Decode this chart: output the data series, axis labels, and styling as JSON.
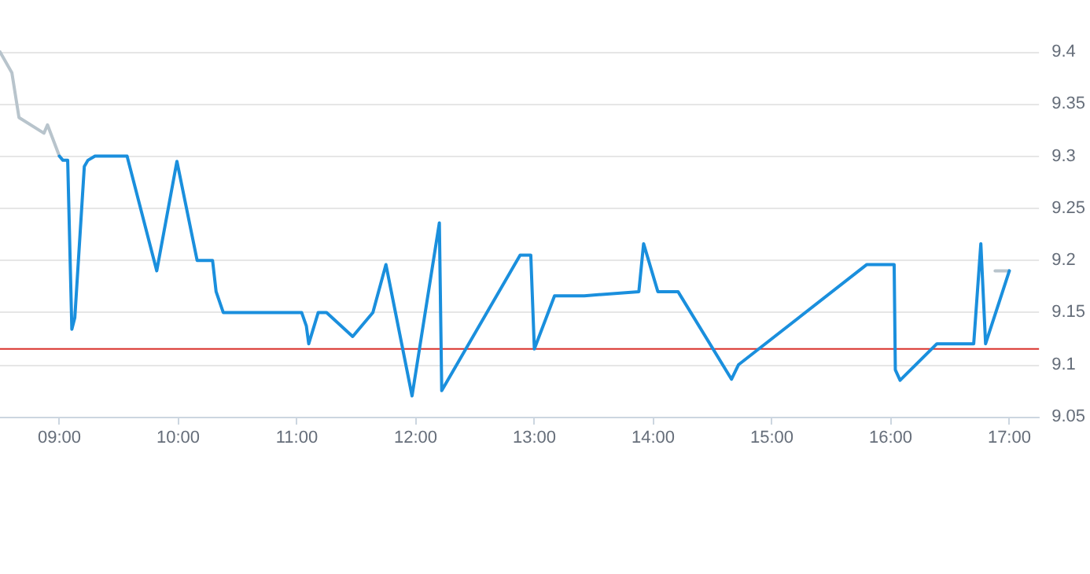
{
  "chart_data": {
    "type": "line",
    "marker": "none",
    "line_style": "solid",
    "grid": "y",
    "xlim": [
      8.5,
      17.25
    ],
    "xticks": [
      {
        "value": 9,
        "label": "09:00"
      },
      {
        "value": 10,
        "label": "10:00"
      },
      {
        "value": 11,
        "label": "11:00"
      },
      {
        "value": 12,
        "label": "12:00"
      },
      {
        "value": 13,
        "label": "13:00"
      },
      {
        "value": 14,
        "label": "14:00"
      },
      {
        "value": 15,
        "label": "15:00"
      },
      {
        "value": 16,
        "label": "16:00"
      },
      {
        "value": 17,
        "label": "17:00"
      }
    ],
    "ylim": [
      9.05,
      9.4
    ],
    "yticks": [
      9.05,
      9.1,
      9.15,
      9.2,
      9.25,
      9.3,
      9.35,
      9.4
    ],
    "series": [
      {
        "color": "#b8c4cc",
        "x": [
          8.5,
          8.6,
          8.66,
          8.87,
          8.9,
          9.0,
          12,
          16.88,
          17.0
        ],
        "values": [
          9.4,
          9.38,
          9.337,
          9.322,
          9.33,
          9.3,
          null,
          9.19,
          9.19
        ]
      },
      {
        "color": "#1a8fdd",
        "x": [
          9.0,
          9.03,
          9.07,
          9.105,
          9.13,
          9.21,
          9.24,
          9.3,
          9.57,
          9.82,
          9.99,
          10.16,
          10.29,
          10.32,
          10.38,
          11.04,
          11.08,
          11.1,
          11.18,
          11.25,
          11.47,
          11.64,
          11.75,
          11.97,
          12.2,
          12.22,
          12.88,
          12.97,
          13.0,
          13.17,
          13.42,
          13.88,
          13.92,
          14.04,
          14.21,
          14.66,
          14.72,
          15.8,
          16.03,
          16.04,
          16.08,
          16.39,
          16.7,
          16.76,
          16.8,
          17.0
        ],
        "values": [
          9.3,
          9.296,
          9.296,
          9.134,
          9.145,
          9.29,
          9.296,
          9.3,
          9.3,
          9.19,
          9.295,
          9.2,
          9.2,
          9.17,
          9.15,
          9.15,
          9.137,
          9.12,
          9.15,
          9.15,
          9.127,
          9.15,
          9.196,
          9.07,
          9.236,
          9.075,
          9.205,
          9.205,
          9.115,
          9.166,
          9.166,
          9.17,
          9.216,
          9.17,
          9.17,
          9.086,
          9.1,
          9.196,
          9.196,
          9.095,
          9.085,
          9.12,
          9.12,
          9.216,
          9.12,
          9.19
        ]
      }
    ],
    "ref_lines": [
      {
        "axis": "y",
        "value": 9.115,
        "color": "#d9312b"
      }
    ]
  }
}
